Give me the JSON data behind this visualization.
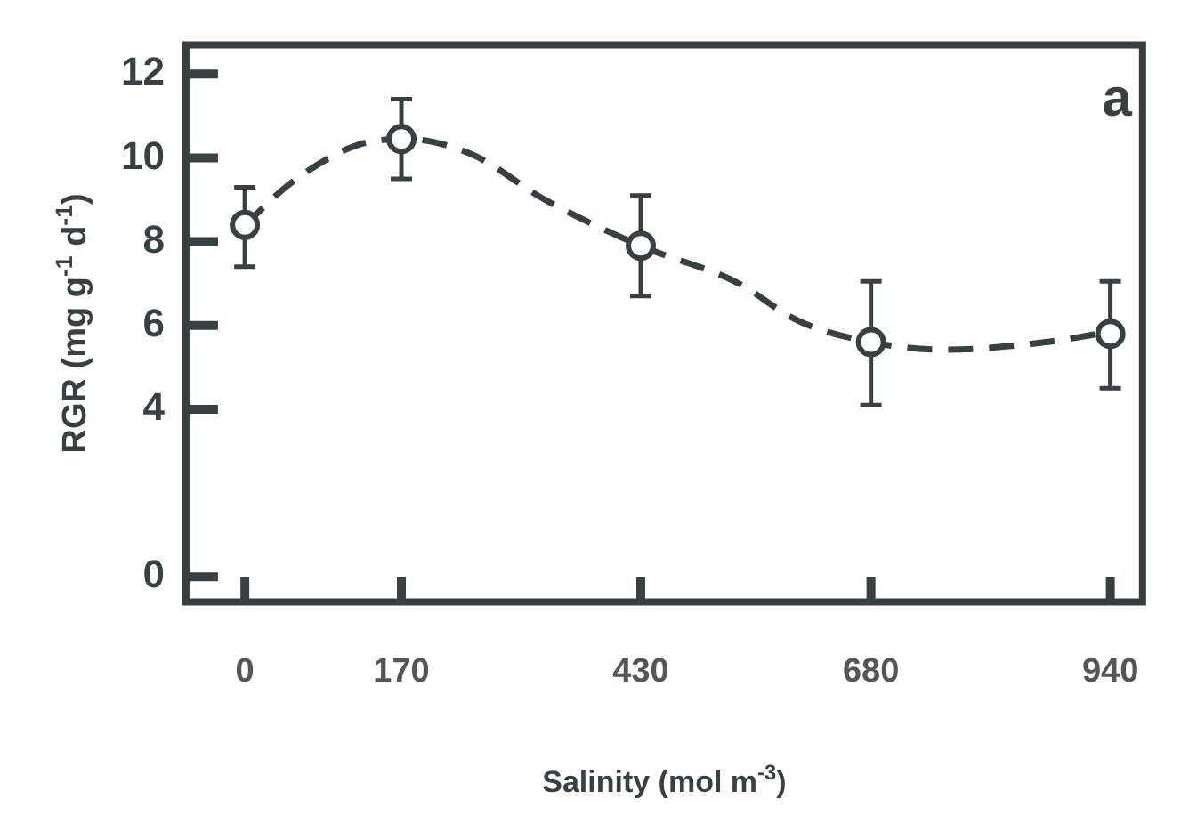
{
  "chart_data": {
    "type": "scatter",
    "xlabel": "Salinity (mol m$^{-3}$)",
    "ylabel": "RGR (mg g$^{-1}$ d$^{-1}$)",
    "annotations": [
      "a"
    ],
    "xlim": [
      -64,
      975
    ],
    "xticks": [
      0,
      170,
      430,
      680,
      940
    ],
    "ylim": [
      -0.6,
      12.7
    ],
    "yticks": [
      0,
      4,
      6,
      8,
      10,
      12
    ],
    "grid": false,
    "legend": false,
    "marker": "circle",
    "series": [
      {
        "color": "#3a3f42",
        "x": [
          0,
          170,
          430,
          680,
          940
        ],
        "values": [
          8.4,
          10.45,
          7.9,
          5.6,
          5.8
        ],
        "errors": [
          [
            7.4,
            9.3
          ],
          [
            9.5,
            11.4
          ],
          [
            6.7,
            9.1
          ],
          [
            4.1,
            7.05
          ],
          [
            4.5,
            7.05
          ]
        ]
      },
      {
        "type": "line",
        "color": "#3a3f42",
        "line_style": "dashed",
        "marker": "none",
        "x": [
          0,
          50,
          119,
          170,
          200,
          250,
          326,
          430,
          533,
          602,
          680,
          760,
          870,
          940
        ],
        "values": [
          8.4,
          9.4,
          10.28,
          10.45,
          10.4,
          10.05,
          9.0,
          7.9,
          7.04,
          6.1,
          5.6,
          5.42,
          5.6,
          5.85
        ]
      }
    ]
  }
}
